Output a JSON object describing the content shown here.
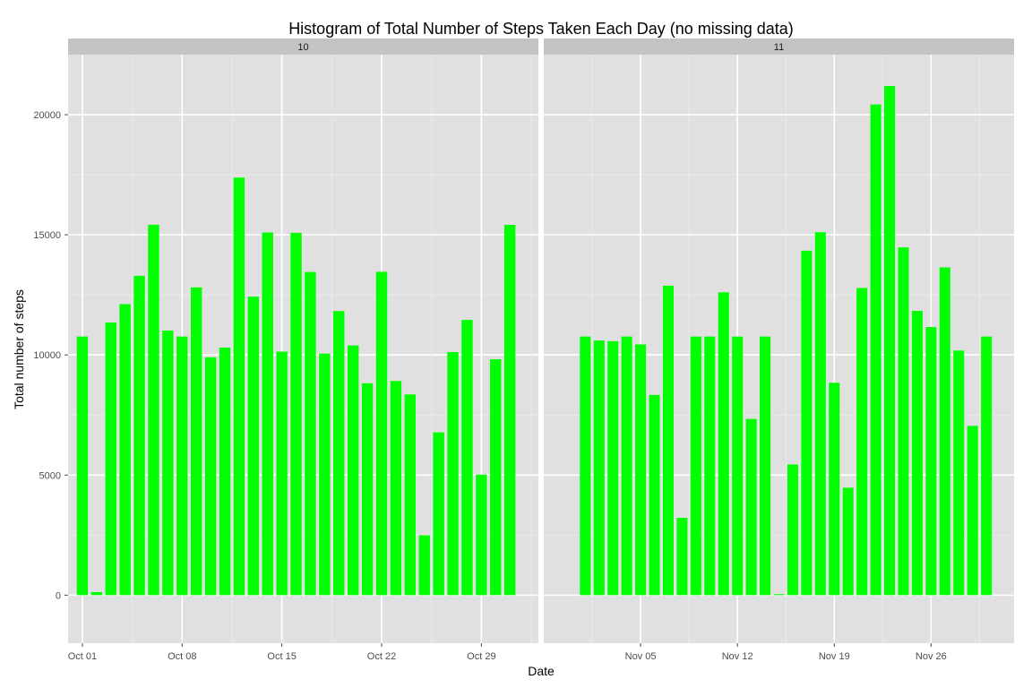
{
  "chart_data": {
    "type": "bar",
    "title": "Histogram of Total Number of Steps Taken Each Day (no missing data)",
    "xlabel": "Date",
    "ylabel": "Total number of steps",
    "ylim": [
      -2000,
      22500
    ],
    "y_ticks": [
      0,
      5000,
      10000,
      15000,
      20000
    ],
    "grid": true,
    "bar_color": "#00ff00",
    "panel_bg": "#e0e0e0",
    "strip_bg": "#c3c3c3",
    "panels": [
      {
        "label": "10",
        "xlim": [
          "2012-09-30",
          "2012-11-02"
        ],
        "x_tick_labels": [
          {
            "date": "2012-10-01",
            "label": "Oct 01"
          },
          {
            "date": "2012-10-08",
            "label": "Oct 08"
          },
          {
            "date": "2012-10-15",
            "label": "Oct 15"
          },
          {
            "date": "2012-10-22",
            "label": "Oct 22"
          },
          {
            "date": "2012-10-29",
            "label": "Oct 29"
          }
        ],
        "x": [
          "2012-10-01",
          "2012-10-02",
          "2012-10-03",
          "2012-10-04",
          "2012-10-05",
          "2012-10-06",
          "2012-10-07",
          "2012-10-08",
          "2012-10-09",
          "2012-10-10",
          "2012-10-11",
          "2012-10-12",
          "2012-10-13",
          "2012-10-14",
          "2012-10-15",
          "2012-10-16",
          "2012-10-17",
          "2012-10-18",
          "2012-10-19",
          "2012-10-20",
          "2012-10-21",
          "2012-10-22",
          "2012-10-23",
          "2012-10-24",
          "2012-10-25",
          "2012-10-26",
          "2012-10-27",
          "2012-10-28",
          "2012-10-29",
          "2012-10-30",
          "2012-10-31"
        ],
        "values": [
          10766,
          126,
          11352,
          12116,
          13294,
          15420,
          11015,
          10766,
          12811,
          9900,
          10304,
          17382,
          12426,
          15098,
          10139,
          15084,
          13452,
          10056,
          11829,
          10395,
          8821,
          13460,
          8918,
          8355,
          2492,
          6778,
          10119,
          11458,
          5018,
          9819,
          15414
        ]
      },
      {
        "label": "11",
        "xlim": [
          "2012-10-29",
          "2012-12-02"
        ],
        "x_tick_labels": [
          {
            "date": "2012-11-05",
            "label": "Nov 05"
          },
          {
            "date": "2012-11-12",
            "label": "Nov 12"
          },
          {
            "date": "2012-11-19",
            "label": "Nov 19"
          },
          {
            "date": "2012-11-26",
            "label": "Nov 26"
          }
        ],
        "x": [
          "2012-11-01",
          "2012-11-02",
          "2012-11-03",
          "2012-11-04",
          "2012-11-05",
          "2012-11-06",
          "2012-11-07",
          "2012-11-08",
          "2012-11-09",
          "2012-11-10",
          "2012-11-11",
          "2012-11-12",
          "2012-11-13",
          "2012-11-14",
          "2012-11-15",
          "2012-11-16",
          "2012-11-17",
          "2012-11-18",
          "2012-11-19",
          "2012-11-20",
          "2012-11-21",
          "2012-11-22",
          "2012-11-23",
          "2012-11-24",
          "2012-11-25",
          "2012-11-26",
          "2012-11-27",
          "2012-11-28",
          "2012-11-29",
          "2012-11-30"
        ],
        "values": [
          10766,
          10600,
          10571,
          10766,
          10439,
          8334,
          12883,
          3219,
          10766,
          10766,
          12608,
          10765,
          7336,
          10766,
          41,
          5441,
          14339,
          15110,
          8841,
          4472,
          12787,
          20427,
          21194,
          14478,
          11834,
          11162,
          13646,
          10183,
          7047,
          10766
        ]
      }
    ]
  }
}
